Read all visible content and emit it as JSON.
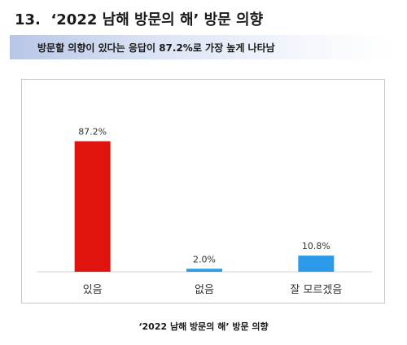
{
  "header": {
    "number": "13.",
    "title": "‘2022 남해 방문의 해’ 방문 의향"
  },
  "summary": "방문할 의향이 있다는 응답이 87.2%로 가장 높게 나타남",
  "caption": "‘2022 남해 방문의 해’ 방문 의향",
  "chart_data": {
    "type": "bar",
    "categories": [
      "있음",
      "없음",
      "잘 모르겠음"
    ],
    "values": [
      87.2,
      2.0,
      10.8
    ],
    "value_labels": [
      "87.2%",
      "2.0%",
      "10.8%"
    ],
    "unit": "%",
    "ylim": [
      0,
      100
    ],
    "grid": false,
    "legend": "none",
    "colors": [
      "#e0140c",
      "#2b9be9",
      "#2b9be9"
    ]
  }
}
